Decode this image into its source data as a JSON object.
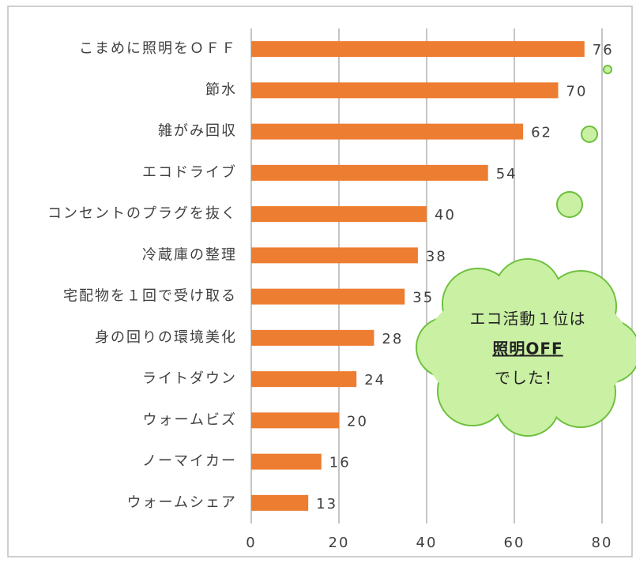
{
  "chart_data": {
    "type": "barh",
    "categories": [
      "こまめに照明をＯＦＦ",
      "節水",
      "雑がみ回収",
      "エコドライブ",
      "コンセントのプラグを抜く",
      "冷蔵庫の整理",
      "宅配物を１回で受け取る",
      "身の回りの環境美化",
      "ライトダウン",
      "ウォームビズ",
      "ノーマイカー",
      "ウォームシェア"
    ],
    "values": [
      76,
      70,
      62,
      54,
      40,
      38,
      35,
      28,
      24,
      20,
      16,
      13
    ],
    "color": "#ed7d31",
    "xlim": [
      0,
      80
    ],
    "xticks": [
      0,
      20,
      40,
      60,
      80
    ],
    "grid": true,
    "annotations": [
      "エコ活動１位は",
      "照明OFF",
      "でした！"
    ]
  }
}
